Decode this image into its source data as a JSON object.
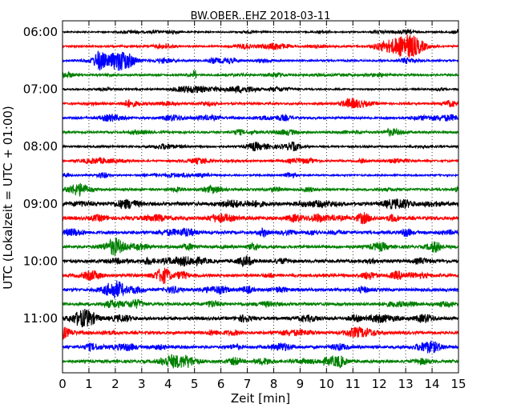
{
  "chart_data": {
    "type": "line",
    "title": "BW.OBER..EHZ 2018-03-11",
    "xlabel": "Zeit  [min]",
    "ylabel": "UTC (Lokalzeit = UTC + 01:00)",
    "xlim": [
      0,
      15
    ],
    "x_ticks": [
      "0",
      "1",
      "2",
      "3",
      "4",
      "5",
      "6",
      "7",
      "8",
      "9",
      "10",
      "11",
      "12",
      "13",
      "14",
      "15"
    ],
    "y_ticks": [
      "06:00",
      "07:00",
      "08:00",
      "09:00",
      "10:00",
      "11:00"
    ],
    "grid": "vertical dotted",
    "colors": [
      "#000000",
      "#ff0000",
      "#0000ff",
      "#008000"
    ],
    "traces": [
      {
        "start": "06:00",
        "amp": 1.5,
        "events": []
      },
      {
        "start": "06:15",
        "amp": 2.0,
        "events": [
          {
            "t": 13.1,
            "amp": 14,
            "dur": 0.9
          }
        ]
      },
      {
        "start": "06:30",
        "amp": 2.0,
        "events": [
          {
            "t": 2.2,
            "amp": 12,
            "dur": 0.8
          },
          {
            "t": 1.4,
            "amp": 9,
            "dur": 0.3
          }
        ]
      },
      {
        "start": "06:45",
        "amp": 2.0,
        "events": [
          {
            "t": 5.0,
            "amp": 8,
            "dur": 0.08
          }
        ]
      },
      {
        "start": "07:00",
        "amp": 1.8,
        "events": []
      },
      {
        "start": "07:15",
        "amp": 2.2,
        "events": [
          {
            "t": 11.0,
            "amp": 3,
            "dur": 0.6
          }
        ]
      },
      {
        "start": "07:30",
        "amp": 2.5,
        "events": []
      },
      {
        "start": "07:45",
        "amp": 2.3,
        "events": []
      },
      {
        "start": "08:00",
        "amp": 2.0,
        "events": []
      },
      {
        "start": "08:15",
        "amp": 2.0,
        "events": []
      },
      {
        "start": "08:30",
        "amp": 1.8,
        "events": []
      },
      {
        "start": "08:45",
        "amp": 2.4,
        "events": []
      },
      {
        "start": "09:00",
        "amp": 3.8,
        "events": []
      },
      {
        "start": "09:15",
        "amp": 3.6,
        "events": []
      },
      {
        "start": "09:30",
        "amp": 3.4,
        "events": []
      },
      {
        "start": "09:45",
        "amp": 3.2,
        "events": []
      },
      {
        "start": "10:00",
        "amp": 3.5,
        "events": []
      },
      {
        "start": "10:15",
        "amp": 3.3,
        "events": []
      },
      {
        "start": "10:30",
        "amp": 3.2,
        "events": []
      },
      {
        "start": "10:45",
        "amp": 3.2,
        "events": []
      },
      {
        "start": "11:00",
        "amp": 3.4,
        "events": []
      },
      {
        "start": "11:15",
        "amp": 3.2,
        "events": []
      },
      {
        "start": "11:30",
        "amp": 3.2,
        "events": []
      },
      {
        "start": "11:45",
        "amp": 3.2,
        "events": []
      }
    ]
  }
}
